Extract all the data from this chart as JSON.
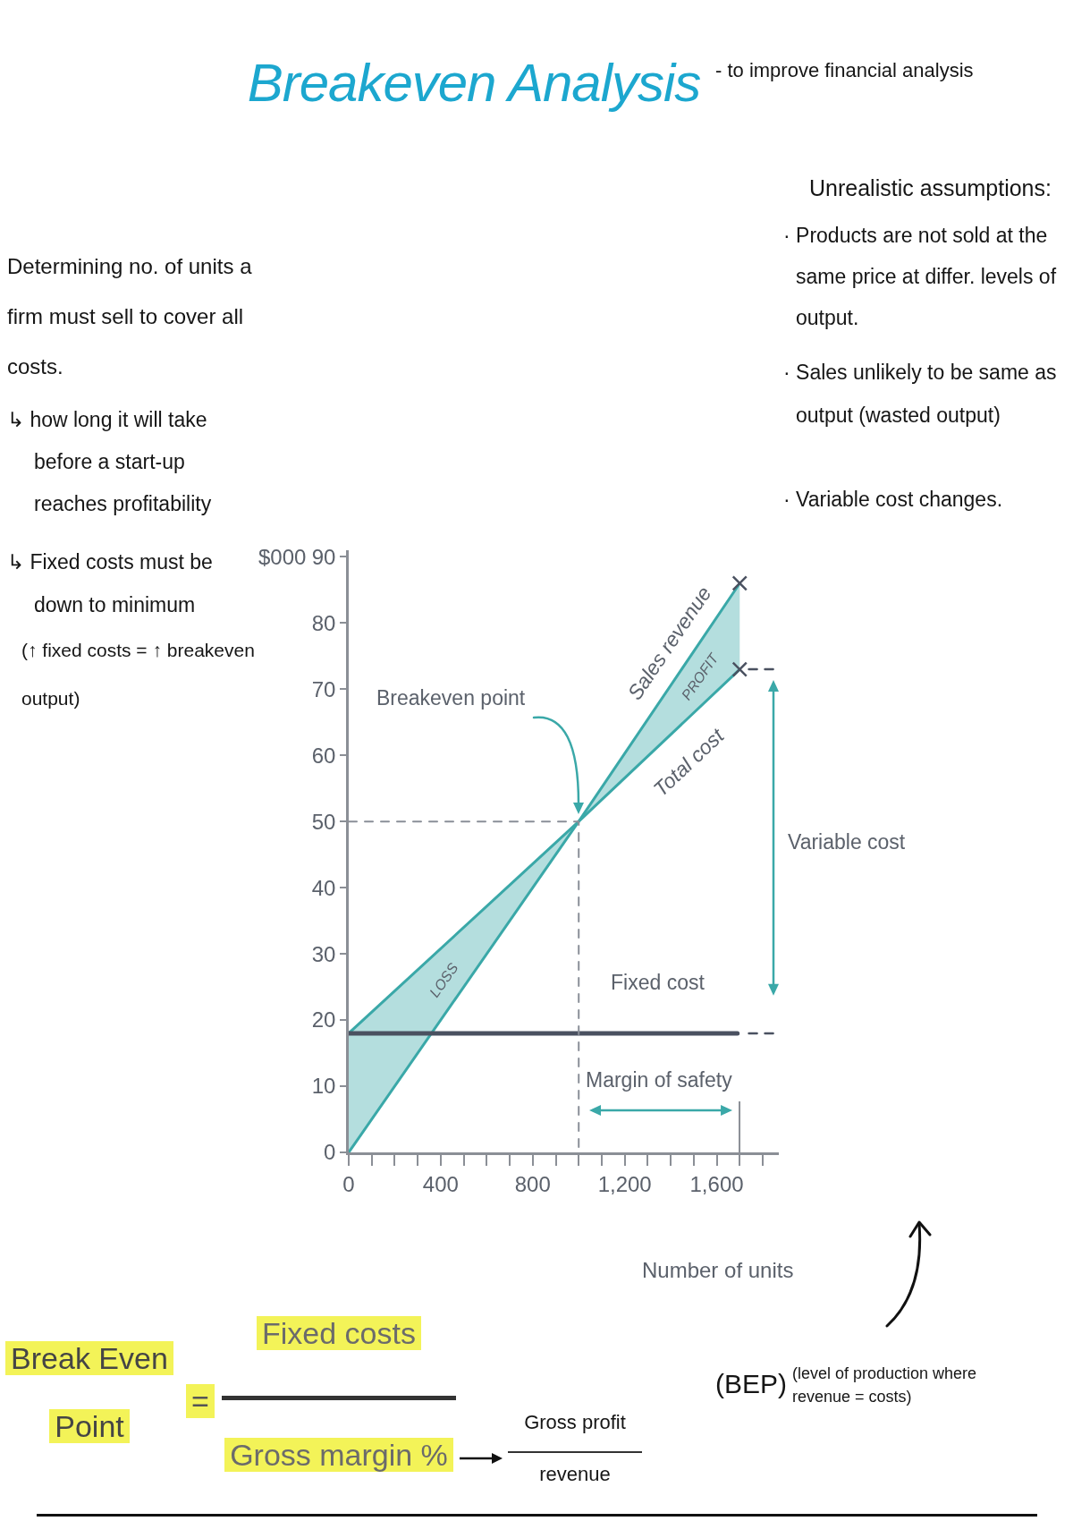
{
  "chart_data": {
    "type": "line",
    "title": "Breakeven Analysis",
    "subtitle": "- to improve financial analysis",
    "xlabel": "Number of units",
    "ylabel": "$000",
    "x": [
      0,
      1000,
      1700
    ],
    "series": [
      {
        "name": "Sales revenue",
        "color": "#3aa8a8",
        "values": [
          0,
          50,
          86
        ]
      },
      {
        "name": "Total cost",
        "color": "#3aa8a8",
        "values": [
          18,
          50,
          73
        ],
        "lower": [
          0,
          50,
          73
        ],
        "upper": [
          18,
          50,
          86
        ]
      },
      {
        "name": "Fixed cost",
        "color": "#4a5160",
        "x": [
          0,
          1690
        ],
        "values": [
          18,
          18
        ]
      },
      {
        "color": "#8a8f98",
        "x": [
          0,
          1000,
          1000
        ],
        "values": [
          50,
          50,
          0
        ],
        "line_style": "dashed"
      },
      {
        "color": "#4a5160",
        "x": [
          1740,
          1860
        ],
        "values": [
          73,
          73
        ],
        "line_style": "dashed"
      },
      {
        "color": "#4a5160",
        "x": [
          1740,
          1860
        ],
        "values": [
          18,
          18
        ],
        "line_style": "dashed"
      },
      {
        "type": "scatter",
        "color": "#4a5160",
        "x": [
          1700,
          1700
        ],
        "values": [
          86,
          73
        ],
        "marker": "cross"
      }
    ],
    "xlim": [
      0,
      1870
    ],
    "xticks": [
      0,
      {
        "value": 100,
        "label": null
      },
      {
        "value": 200,
        "label": null
      },
      {
        "value": 300,
        "label": null
      },
      400,
      {
        "value": 500,
        "label": null
      },
      {
        "value": 600,
        "label": null
      },
      {
        "value": 700,
        "label": null
      },
      800,
      {
        "value": 900,
        "label": null
      },
      {
        "value": 1000,
        "label": null
      },
      {
        "value": 1100,
        "label": null
      },
      {
        "value": 1200,
        "label": "1,200"
      },
      {
        "value": 1300,
        "label": null
      },
      {
        "value": 1400,
        "label": null
      },
      {
        "value": 1500,
        "label": null
      },
      {
        "value": 1600,
        "label": "1,600"
      },
      {
        "value": 1700,
        "label": null
      },
      {
        "value": 1800,
        "label": null
      }
    ],
    "ylim": [
      0,
      91
    ],
    "yticks": [
      0,
      10,
      20,
      30,
      40,
      50,
      60,
      70,
      80,
      90
    ],
    "annotations": [
      "Determining no. of units a firm must sell to cover all costs.",
      "↳ how long it will take before a start-up reaches profitability",
      "↳ Fixed costs must be down to minimum",
      "(↑ fixed costs = ↑ breakeven output)",
      "Unrealistic assumptions:",
      "· Products are not sold at the same price at differ. levels of output.",
      "· Sales unlikely to be same as output (wasted output)",
      "· Variable cost changes.",
      "Breakeven point",
      "PROFIT",
      "LOSS",
      "Margin of safety",
      "Variable cost",
      "Break Even Point",
      "=",
      "Fixed costs",
      "Gross margin %",
      "Gross profit",
      "revenue",
      "(BEP)",
      "(level of production where revenue = costs)"
    ]
  }
}
